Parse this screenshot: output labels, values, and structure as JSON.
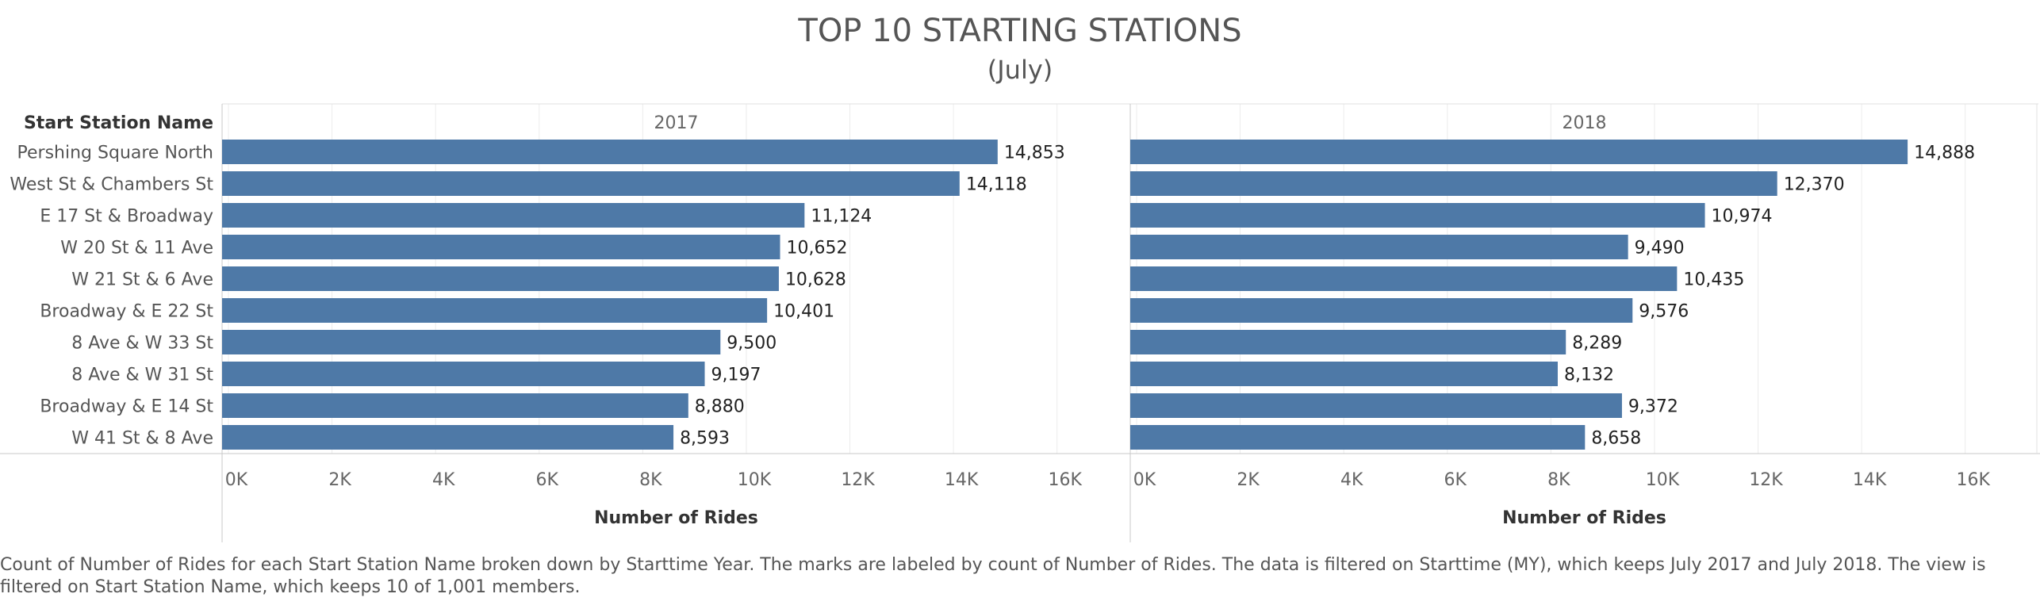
{
  "chart_data": {
    "type": "bar",
    "orientation": "horizontal",
    "title": "TOP 10 STARTING STATIONS",
    "subtitle": "(July)",
    "row_header": "Start Station Name",
    "xlabel": "Number of Rides",
    "xlim": [
      0,
      17000
    ],
    "x_ticks": [
      0,
      2000,
      4000,
      6000,
      8000,
      10000,
      12000,
      14000,
      16000
    ],
    "x_tick_labels": [
      "0K",
      "2K",
      "4K",
      "6K",
      "8K",
      "10K",
      "12K",
      "14K",
      "16K"
    ],
    "categories": [
      "Pershing Square North",
      "West St & Chambers St",
      "E 17 St & Broadway",
      "W 20 St & 11 Ave",
      "W 21 St & 6 Ave",
      "Broadway & E 22 St",
      "8 Ave & W 33 St",
      "8 Ave & W 31 St",
      "Broadway & E 14 St",
      "W 41 St & 8 Ave"
    ],
    "panels": [
      {
        "year": "2017",
        "values": [
          14853,
          14118,
          11124,
          10652,
          10628,
          10401,
          9500,
          9197,
          8880,
          8593
        ],
        "value_labels": [
          "14,853",
          "14,118",
          "11,124",
          "10,652",
          "10,628",
          "10,401",
          "9,500",
          "9,197",
          "8,880",
          "8,593"
        ]
      },
      {
        "year": "2018",
        "values": [
          14888,
          12370,
          10974,
          9490,
          10435,
          9576,
          8289,
          8132,
          9372,
          8658
        ],
        "value_labels": [
          "14,888",
          "12,370",
          "10,974",
          "9,490",
          "10,435",
          "9,576",
          "8,289",
          "8,132",
          "9,372",
          "8,658"
        ]
      }
    ],
    "bar_color": "#4e79a7",
    "grid": true,
    "legend": "none"
  },
  "caption": "Count of Number of Rides for each Start Station Name broken down by Starttime Year.  The marks are labeled by count of Number of Rides. The data is filtered on Starttime (MY), which keeps July 2017 and July 2018. The view is filtered on Start Station Name, which keeps 10 of 1,001 members."
}
